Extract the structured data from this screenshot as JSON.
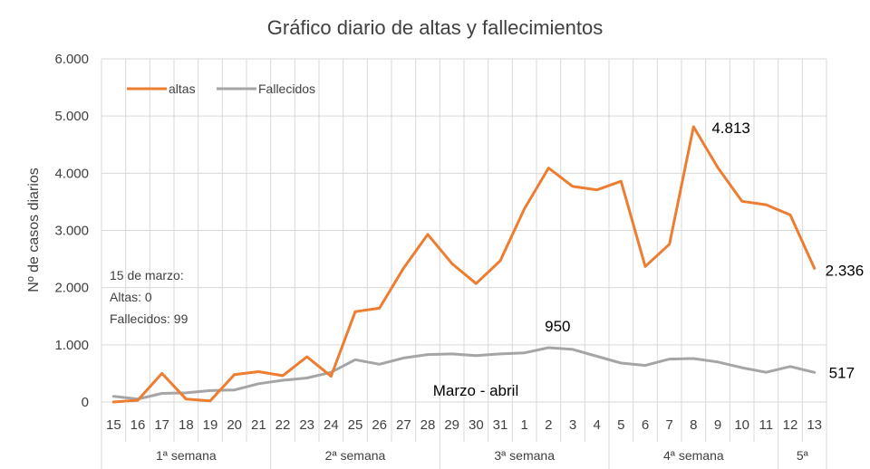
{
  "chart_data": {
    "type": "line",
    "title": "Gráfico diario de altas y fallecimientos",
    "xlabel": "Marzo - abril",
    "ylabel": "Nº de casos diarios",
    "ylim": [
      0,
      6000
    ],
    "yticks": [
      "0",
      "1.000",
      "2.000",
      "3.000",
      "4.000",
      "5.000",
      "6.000"
    ],
    "grid": true,
    "legend_position": "top-left",
    "categories": [
      "15",
      "16",
      "17",
      "18",
      "19",
      "20",
      "21",
      "22",
      "23",
      "24",
      "25",
      "26",
      "27",
      "28",
      "29",
      "30",
      "31",
      "1",
      "2",
      "3",
      "4",
      "5",
      "6",
      "7",
      "8",
      "9",
      "10",
      "11",
      "12",
      "13"
    ],
    "weeks": [
      {
        "label": "1ª semana",
        "span": 7
      },
      {
        "label": "2ª semana",
        "span": 7
      },
      {
        "label": "3ª semana",
        "span": 7
      },
      {
        "label": "4ª semana",
        "span": 7
      },
      {
        "label": "5ª",
        "span": 2
      }
    ],
    "series": [
      {
        "name": "altas",
        "color": "#ED7D31",
        "values": [
          0,
          30,
          500,
          50,
          20,
          480,
          530,
          460,
          790,
          450,
          1580,
          1640,
          2340,
          2930,
          2420,
          2070,
          2470,
          3380,
          4090,
          3770,
          3710,
          3860,
          2370,
          2760,
          4813,
          4100,
          3510,
          3450,
          3270,
          2336
        ]
      },
      {
        "name": "Fallecidos",
        "color": "#A5A5A5",
        "values": [
          99,
          50,
          150,
          160,
          200,
          210,
          320,
          380,
          420,
          520,
          740,
          660,
          770,
          830,
          840,
          810,
          840,
          860,
          950,
          920,
          800,
          680,
          640,
          750,
          760,
          700,
          600,
          520,
          620,
          517
        ]
      }
    ],
    "data_labels": [
      {
        "series": "altas",
        "category": "8",
        "text": "4.813"
      },
      {
        "series": "altas",
        "category": "13",
        "text": "2.336"
      },
      {
        "series": "Fallecidos",
        "category": "2",
        "text": "950"
      },
      {
        "series": "Fallecidos",
        "category": "13",
        "text": "517"
      }
    ],
    "annotation": [
      "15 de marzo:",
      "Altas: 0",
      "Fallecidos: 99"
    ]
  }
}
